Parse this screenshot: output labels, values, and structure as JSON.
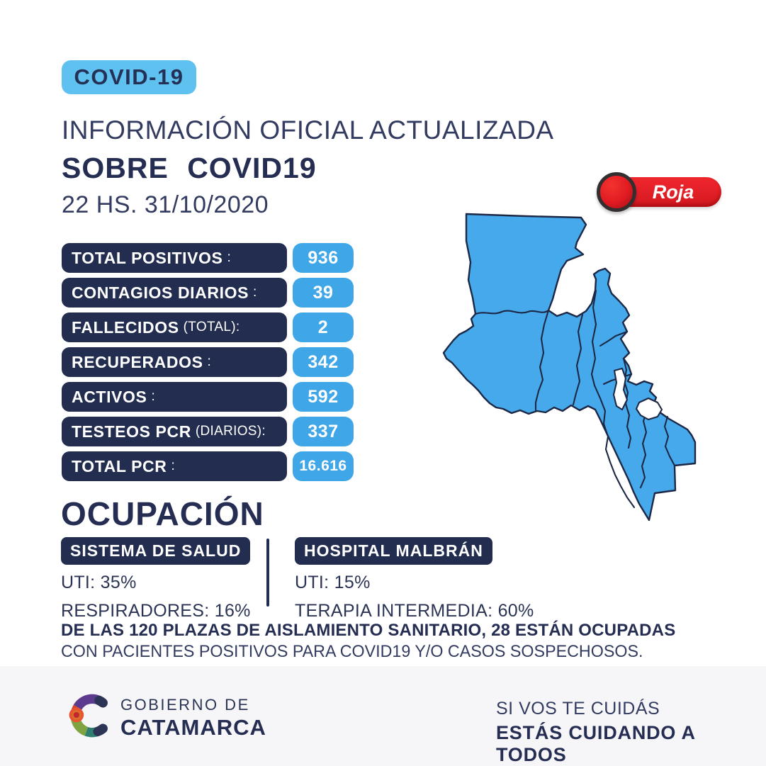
{
  "header": {
    "badge_label": "COVID-19",
    "title": "INFORMACIÓN OFICIAL ACTUALIZADA",
    "subtitle": "SOBRE COVID19",
    "datetime": "22 HS. 31/10/2020"
  },
  "alert": {
    "label": "Roja",
    "color": "#e41c23"
  },
  "map": {
    "region": "catamarca-province",
    "fill": "#45a9eb",
    "stroke": "#1c2845"
  },
  "stats": [
    {
      "label": "TOTAL POSITIVOS",
      "note": ":",
      "value": "936"
    },
    {
      "label": "CONTAGIOS DIARIOS",
      "note": ":",
      "value": "39"
    },
    {
      "label": "FALLECIDOS",
      "note": "(TOTAL):",
      "value": "2"
    },
    {
      "label": "RECUPERADOS",
      "note": ":",
      "value": "342"
    },
    {
      "label": "ACTIVOS",
      "note": ":",
      "value": "592"
    },
    {
      "label": "TESTEOS PCR",
      "note": "(DIARIOS):",
      "value": "337"
    },
    {
      "label": "TOTAL PCR",
      "note": ":",
      "value": "16.616"
    }
  ],
  "ocupacion": {
    "title": "OCUPACIÓN",
    "columns": [
      {
        "header": "SISTEMA DE SALUD",
        "lines": [
          "UTI: 35%",
          "RESPIRADORES: 16%"
        ]
      },
      {
        "header": "HOSPITAL MALBRÁN",
        "lines": [
          "UTI: 15%",
          "TERAPIA INTERMEDIA: 60%"
        ]
      }
    ],
    "note_bold": "DE LAS 120 PLAZAS DE AISLAMIENTO SANITARIO, 28 ESTÁN OCUPADAS",
    "note_regular": "CON PACIENTES POSITIVOS PARA COVID19 Y/O CASOS SOSPECHOSOS."
  },
  "footer": {
    "logo_line1": "GOBIERNO DE",
    "logo_line2": "CATAMARCA",
    "slogan_line1": "SI VOS TE CUIDÁS",
    "slogan_line2": "ESTÁS CUIDANDO A TODOS"
  },
  "colors": {
    "navy": "#232d4f",
    "value_blue": "#3fa6e8",
    "badge_blue": "#5fc1ef",
    "alert_red": "#e41c23",
    "footer_bg": "#f6f6f8"
  }
}
